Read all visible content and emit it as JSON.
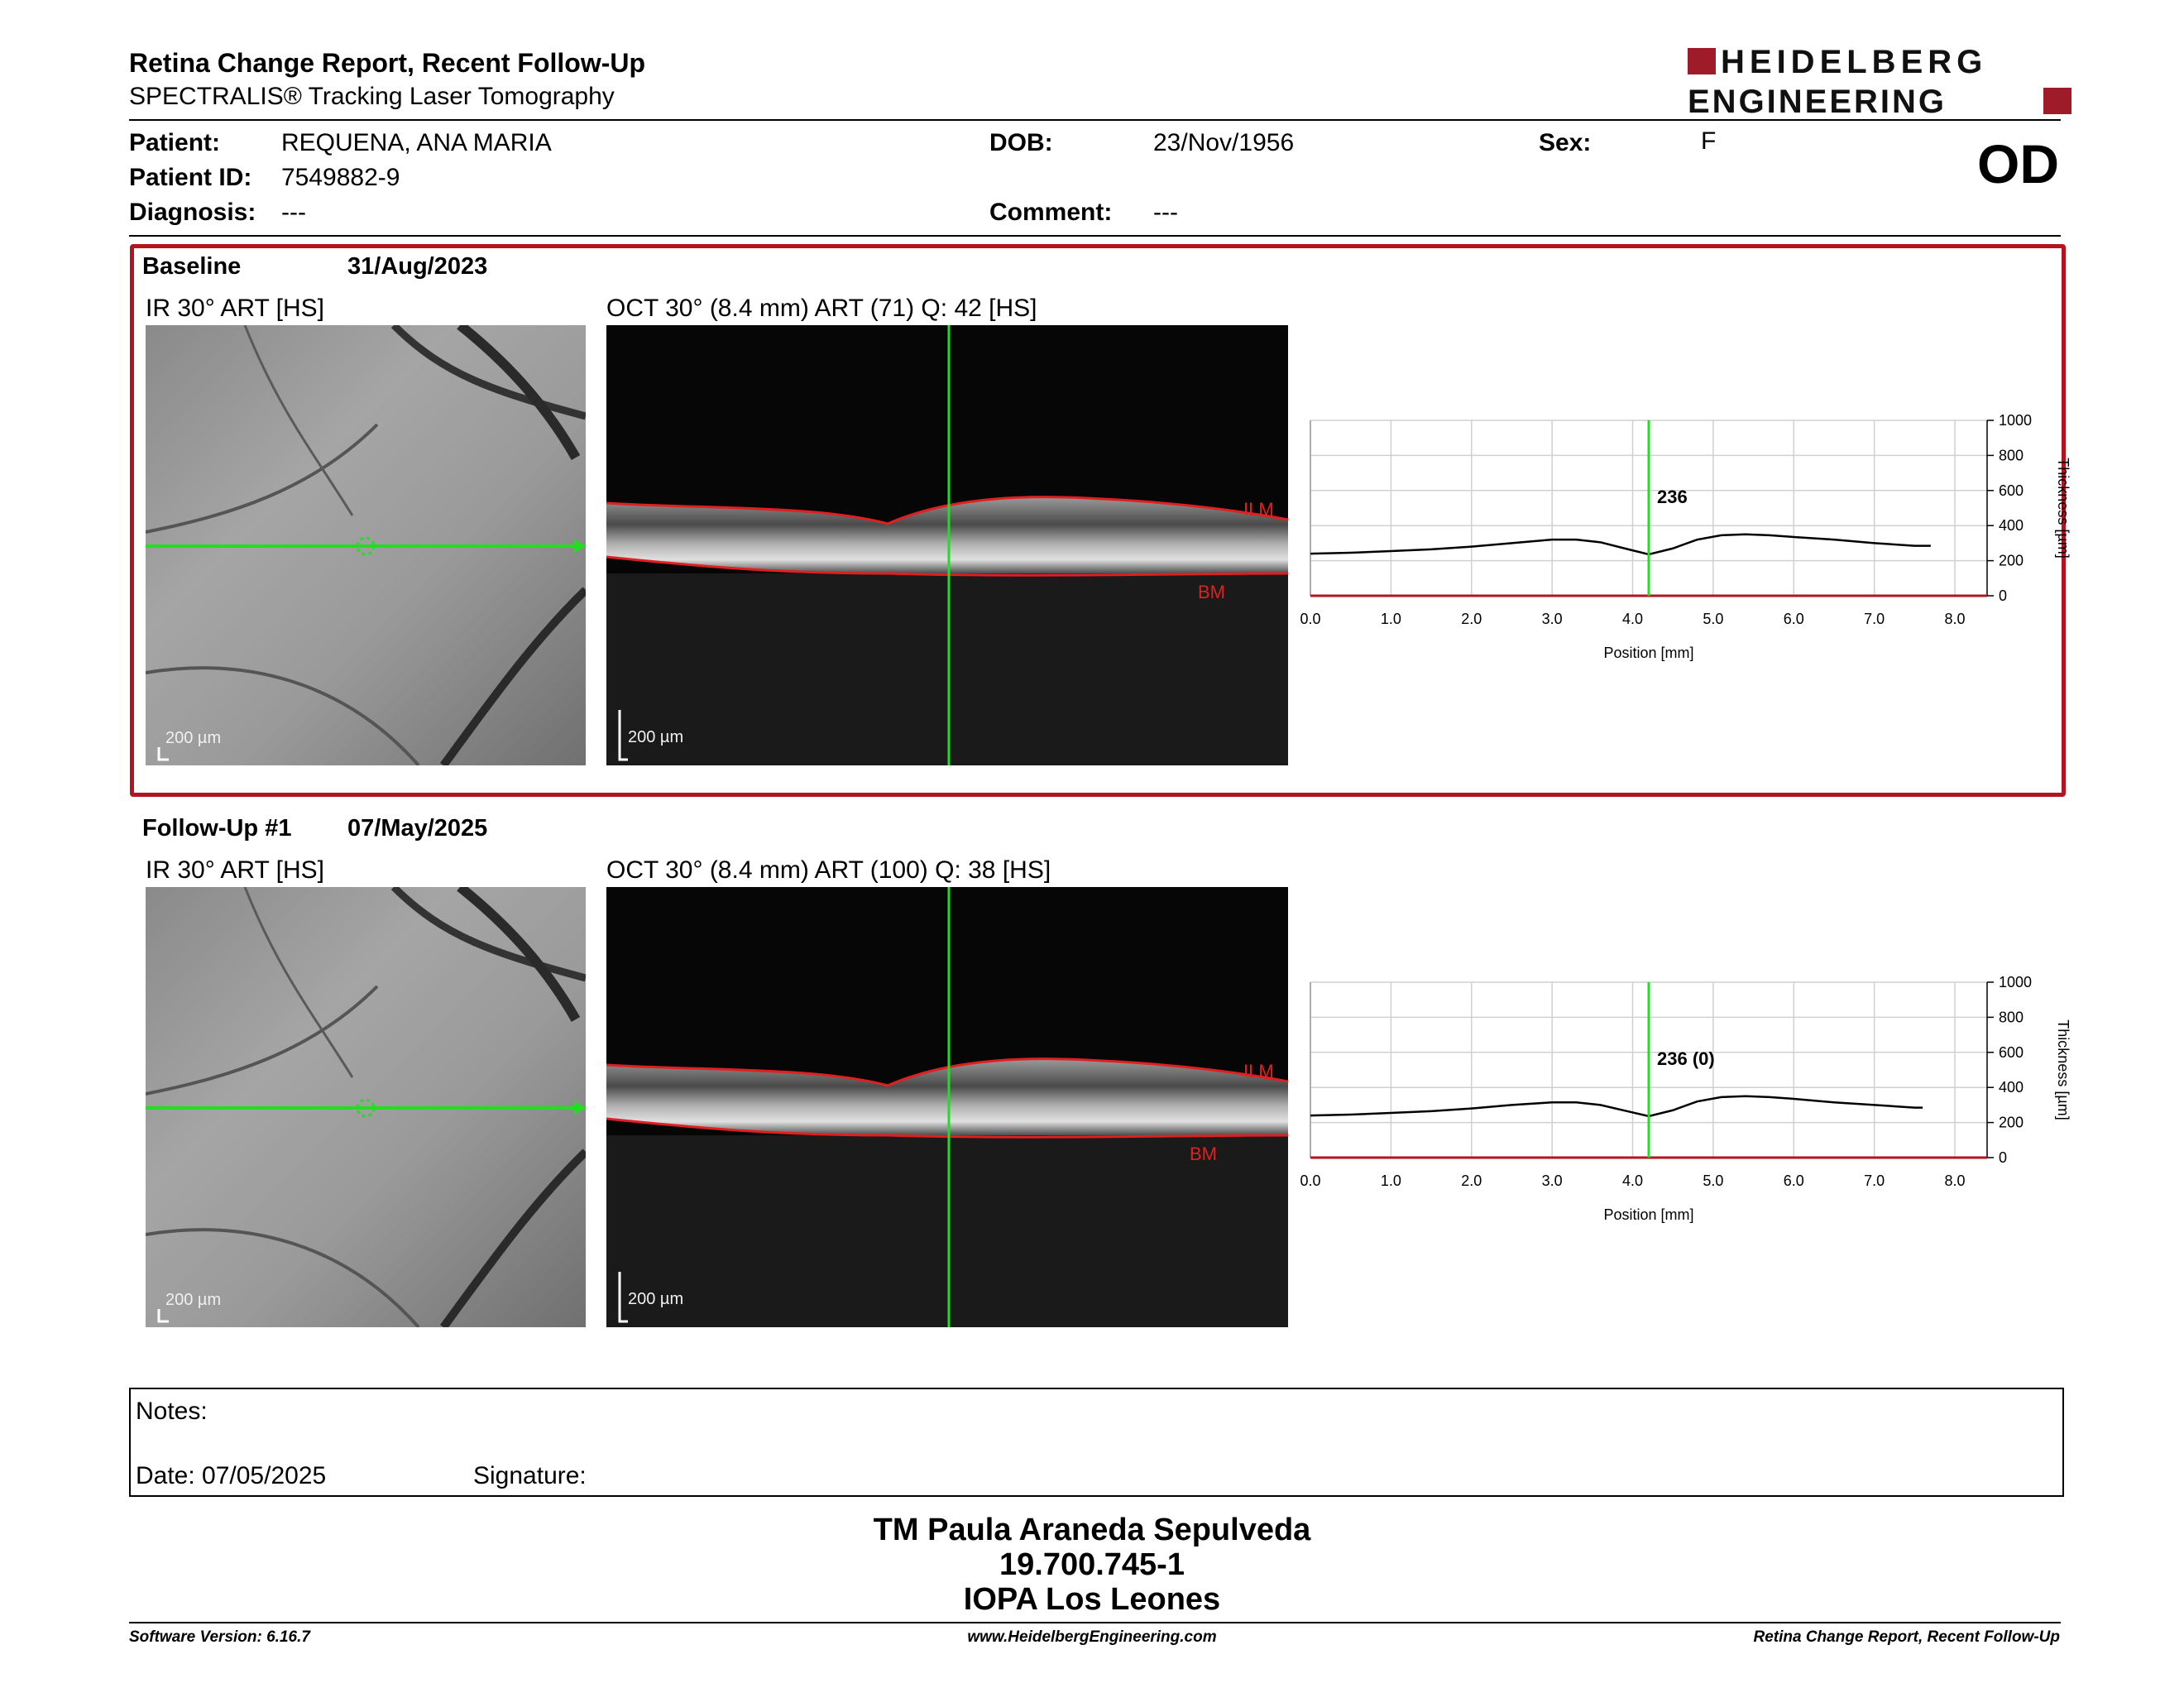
{
  "header": {
    "title": "Retina Change Report, Recent Follow-Up",
    "subtitle": "SPECTRALIS® Tracking Laser Tomography",
    "logo_line1": "HEIDELBERG",
    "logo_line2": "ENGINEERING",
    "brand_color": "#9e1b2a"
  },
  "patient": {
    "patient_label": "Patient:",
    "patient_value": "REQUENA, ANA MARIA",
    "id_label": "Patient ID:",
    "id_value": "7549882-9",
    "diagnosis_label": "Diagnosis:",
    "diagnosis_value": "---",
    "dob_label": "DOB:",
    "dob_value": "23/Nov/1956",
    "comment_label": "Comment:",
    "comment_value": "---",
    "sex_label": "Sex:",
    "sex_value": "F",
    "eye": "OD"
  },
  "baseline": {
    "label": "Baseline",
    "date": "31/Aug/2023",
    "ir_caption": "IR 30° ART [HS]",
    "oct_caption": "OCT 30° (8.4 mm) ART (71) Q: 42 [HS]",
    "scale": "200 µm",
    "ilm": "ILM",
    "bm": "BM",
    "thickness_label": "236"
  },
  "followup": {
    "label": "Follow-Up #1",
    "date": "07/May/2025",
    "ir_caption": "IR 30° ART [HS]",
    "oct_caption": "OCT 30° (8.4 mm) ART (100) Q: 38 [HS]",
    "scale": "200 µm",
    "ilm": "ILM",
    "bm": "BM",
    "thickness_label": "236 (0)"
  },
  "chart_data": [
    {
      "type": "line",
      "xlabel": "Position [mm]",
      "ylabel": "Thickness [µm]",
      "xlim": [
        0,
        8.4
      ],
      "ylim": [
        0,
        1000
      ],
      "x_ticks": [
        "0.0",
        "1.0",
        "2.0",
        "3.0",
        "4.0",
        "5.0",
        "6.0",
        "7.0",
        "8.0"
      ],
      "y_ticks": [
        "0",
        "200",
        "400",
        "600",
        "800",
        "1000"
      ],
      "grid": true,
      "marker_x": 4.2,
      "marker_label": "236",
      "series": [
        {
          "x": [
            0,
            0.5,
            1,
            1.5,
            2,
            2.5,
            3,
            3.3,
            3.6,
            3.9,
            4.2,
            4.5,
            4.8,
            5.1,
            5.4,
            5.7,
            6,
            6.5,
            7,
            7.5,
            7.7
          ],
          "y": [
            240,
            245,
            255,
            265,
            280,
            300,
            320,
            320,
            305,
            270,
            236,
            270,
            320,
            345,
            350,
            345,
            335,
            320,
            300,
            285,
            285
          ]
        }
      ]
    },
    {
      "type": "line",
      "xlabel": "Position [mm]",
      "ylabel": "Thickness [µm]",
      "xlim": [
        0,
        8.4
      ],
      "ylim": [
        0,
        1000
      ],
      "x_ticks": [
        "0.0",
        "1.0",
        "2.0",
        "3.0",
        "4.0",
        "5.0",
        "6.0",
        "7.0",
        "8.0"
      ],
      "y_ticks": [
        "0",
        "200",
        "400",
        "600",
        "800",
        "1000"
      ],
      "grid": true,
      "marker_x": 4.2,
      "marker_label": "236 (0)",
      "series": [
        {
          "x": [
            0,
            0.5,
            1,
            1.5,
            2,
            2.5,
            3,
            3.3,
            3.6,
            3.9,
            4.2,
            4.5,
            4.8,
            5.1,
            5.4,
            5.7,
            6,
            6.5,
            7,
            7.5,
            7.6
          ],
          "y": [
            240,
            245,
            255,
            265,
            280,
            300,
            315,
            315,
            300,
            268,
            236,
            270,
            320,
            345,
            350,
            345,
            335,
            315,
            300,
            285,
            285
          ]
        }
      ]
    }
  ],
  "notes": {
    "notes_label": "Notes:",
    "date_label": "Date: 07/05/2025",
    "signature_label": "Signature:"
  },
  "signer": {
    "name": "TM Paula Araneda Sepulveda",
    "id": "19.700.745-1",
    "institution": "IOPA Los Leones"
  },
  "footer": {
    "software": "Software Version: 6.16.7",
    "website": "www.HeidelbergEngineering.com",
    "report": "Retina Change Report, Recent Follow-Up"
  }
}
